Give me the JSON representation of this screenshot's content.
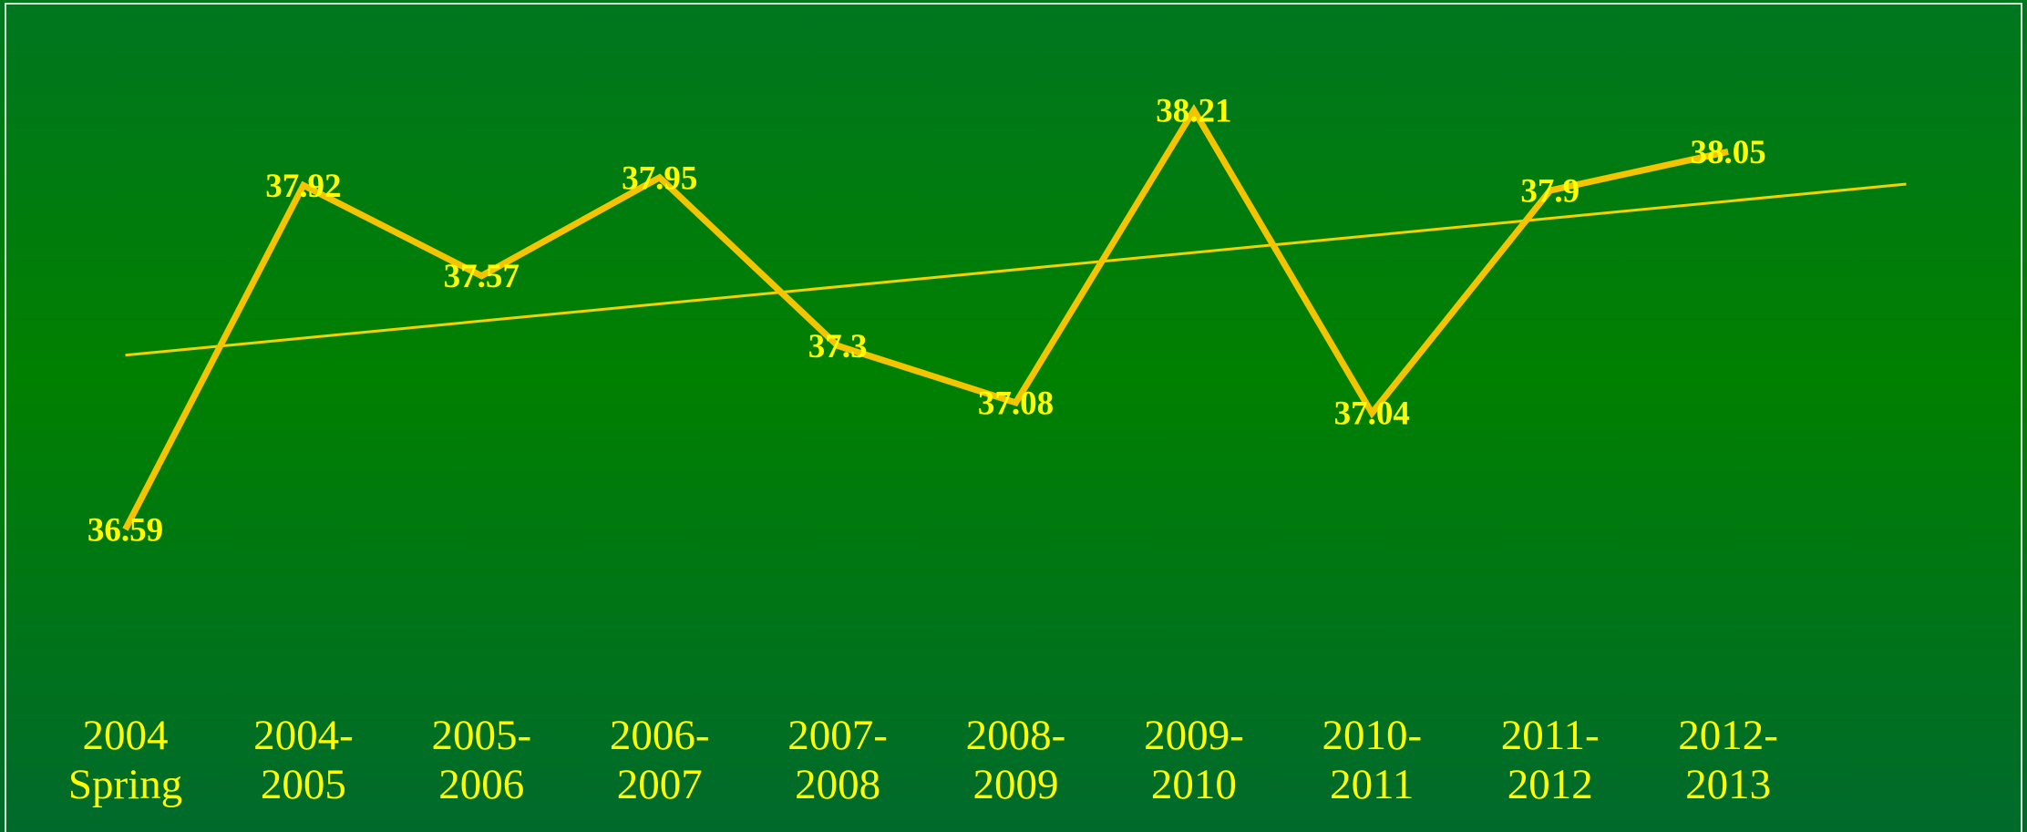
{
  "chart_data": {
    "type": "line",
    "categories": [
      "2004 Spring",
      "2004-2005",
      "2005-2006",
      "2006-2007",
      "2007-2008",
      "2008-2009",
      "2009-2010",
      "2010-2011",
      "2011-2012",
      "2012-2013"
    ],
    "series": [
      {
        "color": "#f5c400",
        "values": [
          36.59,
          37.92,
          37.57,
          37.95,
          37.3,
          37.08,
          38.21,
          37.04,
          37.9,
          38.05
        ]
      }
    ],
    "trendline": true,
    "trendline_color": "#f2d200",
    "label_color": "#ffff00"
  }
}
